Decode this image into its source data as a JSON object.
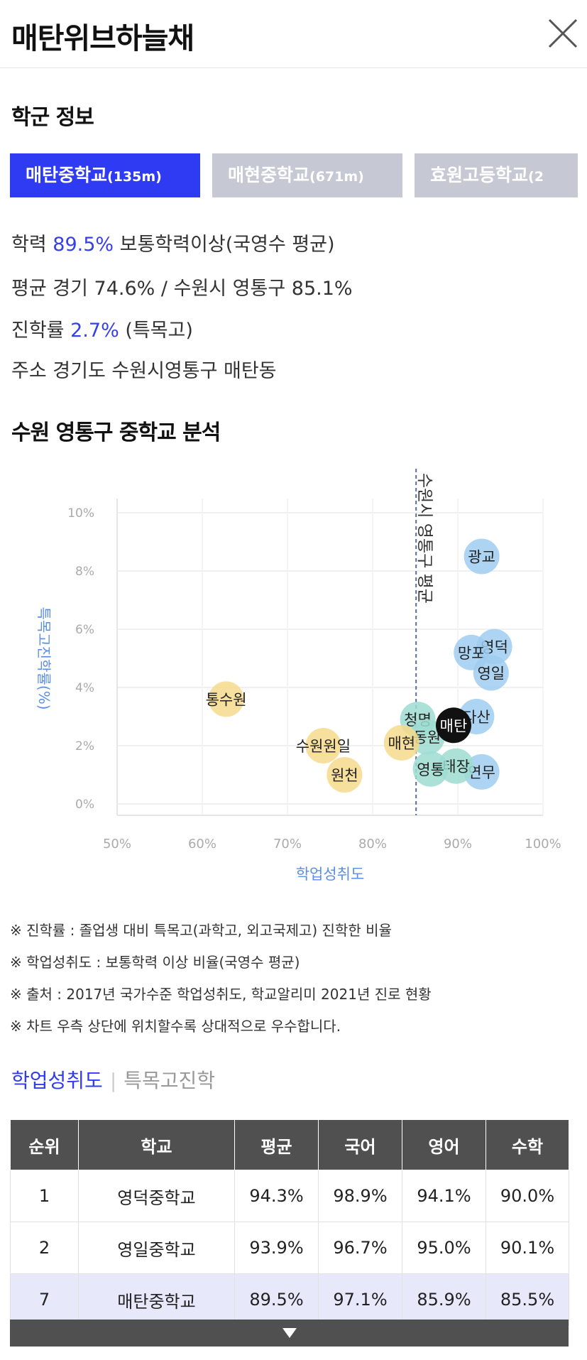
{
  "header": {
    "title": "매탄위브하늘채"
  },
  "school_info": {
    "title": "학군 정보",
    "tabs": [
      {
        "name": "매탄중학교",
        "distance": "(135m)"
      },
      {
        "name": "매현중학교",
        "distance": "(671m)"
      },
      {
        "name": "효원고등학교",
        "distance": "(2"
      }
    ],
    "achievement": {
      "label": "학력",
      "value": "89.5%",
      "desc": "보통학력이상(국영수 평균)"
    },
    "average": {
      "label": "평균",
      "text": "경기 74.6% / 수원시 영통구 85.1%"
    },
    "advancement": {
      "label": "진학률",
      "value": "2.7%",
      "desc": "(특목고)"
    },
    "address": {
      "label": "주소",
      "text": "경기도 수원시영통구 매탄동"
    }
  },
  "analysis": {
    "title": "수원 영통구 중학교 분석"
  },
  "chart_data": {
    "type": "scatter",
    "xlabel": "학업성취도",
    "ylabel": "특목고진학률(%)",
    "xlim": [
      50,
      100
    ],
    "ylim": [
      0,
      10
    ],
    "x_ticks": [
      "50%",
      "60%",
      "70%",
      "80%",
      "90%",
      "100%"
    ],
    "y_ticks": [
      "0%",
      "2%",
      "4%",
      "6%",
      "8%",
      "10%"
    ],
    "reference_line": {
      "x": 85.1,
      "label": "수원시 영통구 평균"
    },
    "colors": {
      "blue": "#9fcdf0",
      "teal": "#9edcd1",
      "yellow": "#f6d98c",
      "current": "#111111",
      "axis_label": "#5b8fe6"
    },
    "grid": true,
    "points": [
      {
        "label": "광교",
        "x": 92.8,
        "y": 8.5,
        "color": "blue"
      },
      {
        "label": "영덕",
        "x": 94.3,
        "y": 5.4,
        "color": "blue"
      },
      {
        "label": "망포",
        "x": 91.6,
        "y": 5.2,
        "color": "blue"
      },
      {
        "label": "영일",
        "x": 93.9,
        "y": 4.5,
        "color": "blue"
      },
      {
        "label": "다산",
        "x": 92.2,
        "y": 3.0,
        "color": "blue"
      },
      {
        "label": "연무",
        "x": 92.8,
        "y": 1.1,
        "color": "blue"
      },
      {
        "label": "태장",
        "x": 89.8,
        "y": 1.3,
        "color": "teal"
      },
      {
        "label": "영통",
        "x": 86.8,
        "y": 1.2,
        "color": "teal"
      },
      {
        "label": "청명",
        "x": 85.3,
        "y": 2.9,
        "color": "teal"
      },
      {
        "label": "동원",
        "x": 86.4,
        "y": 2.3,
        "color": "teal"
      },
      {
        "label": "매탄",
        "x": 89.5,
        "y": 2.7,
        "color": "current"
      },
      {
        "label": "매현",
        "x": 83.4,
        "y": 2.1,
        "color": "yellow"
      },
      {
        "label": "통수원",
        "x": 62.8,
        "y": 3.6,
        "color": "yellow"
      },
      {
        "label": "수원원일",
        "x": 74.2,
        "y": 2.0,
        "color": "yellow"
      },
      {
        "label": "원천",
        "x": 76.7,
        "y": 1.0,
        "color": "yellow"
      }
    ]
  },
  "notes": [
    "※ 진학률 : 졸업생 대비 특목고(과학고, 외고국제고) 진학한 비율",
    "※ 학업성취도 : 보통학력 이상 비율(국영수 평균)",
    "※ 출처 : 2017년 국가수준 학업성취도, 학교알리미 2021년 진로 현황",
    "※ 차트 우측 상단에 위치할수록 상대적으로 우수합니다."
  ],
  "ranking": {
    "tab_active": "학업성취도",
    "tab_inactive": "특목고진학",
    "columns": [
      "순위",
      "학교",
      "평균",
      "국어",
      "영어",
      "수학"
    ],
    "rows": [
      [
        "1",
        "영덕중학교",
        "94.3%",
        "98.9%",
        "94.1%",
        "90.0%"
      ],
      [
        "2",
        "영일중학교",
        "93.9%",
        "96.7%",
        "95.0%",
        "90.1%"
      ],
      [
        "7",
        "매탄중학교",
        "89.5%",
        "97.1%",
        "85.9%",
        "85.5%"
      ]
    ]
  }
}
